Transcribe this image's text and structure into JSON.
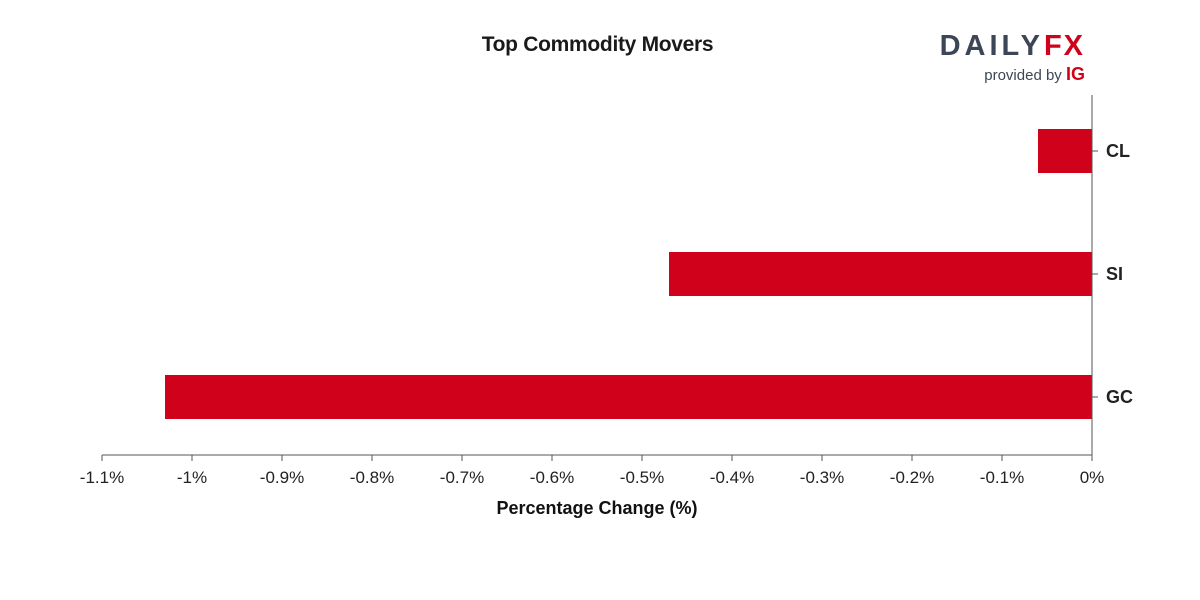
{
  "chart_data": {
    "type": "bar",
    "orientation": "horizontal",
    "title": "Top Commodity Movers",
    "xlabel": "Percentage Change (%)",
    "ylabel": "",
    "categories": [
      "CL",
      "SI",
      "GC"
    ],
    "values": [
      -0.06,
      -0.47,
      -1.03
    ],
    "xlim": [
      -1.1,
      0
    ],
    "xticks": [
      -1.1,
      -1.0,
      -0.9,
      -0.8,
      -0.7,
      -0.6,
      -0.5,
      -0.4,
      -0.3,
      -0.2,
      -0.1,
      0
    ],
    "xtick_labels": [
      "-1.1%",
      "-1%",
      "-0.9%",
      "-0.8%",
      "-0.7%",
      "-0.6%",
      "-0.5%",
      "-0.4%",
      "-0.3%",
      "-0.2%",
      "-0.1%",
      "0%"
    ],
    "category_axis_side": "right",
    "grid": false,
    "bar_color": "#d0021b"
  },
  "brand": {
    "wordmark_left": "DAILY",
    "wordmark_right": "FX",
    "provided_by": "provided by",
    "ig": "IG",
    "text_color": "#3d4656",
    "accent": "#d0021b"
  }
}
